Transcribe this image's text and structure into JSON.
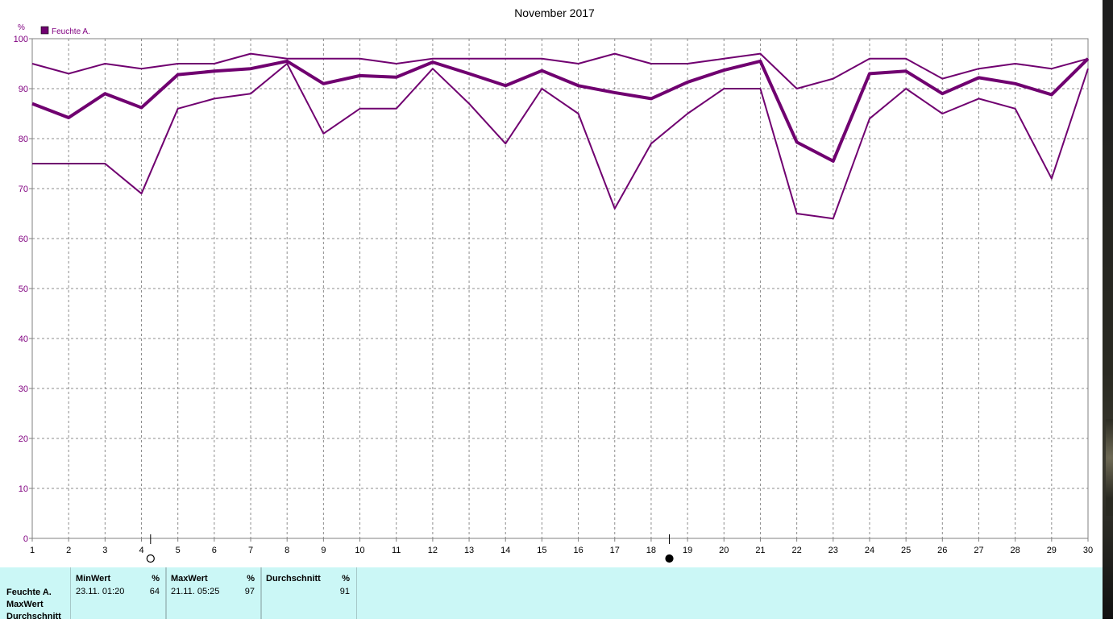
{
  "chart_data": {
    "type": "line",
    "title": "November 2017",
    "ylabel": "%",
    "xlabel": "",
    "legend": {
      "label": "Feuchte A.",
      "placement": "top-left",
      "color": "#700070"
    },
    "ylim": [
      0,
      100
    ],
    "yticks": [
      0,
      10,
      20,
      30,
      40,
      50,
      60,
      70,
      80,
      90,
      100
    ],
    "xlim": [
      1,
      30
    ],
    "x": [
      1,
      2,
      3,
      4,
      5,
      6,
      7,
      8,
      9,
      10,
      11,
      12,
      13,
      14,
      15,
      16,
      17,
      18,
      19,
      20,
      21,
      22,
      23,
      24,
      25,
      26,
      27,
      28,
      29,
      30
    ],
    "grid": true,
    "series": [
      {
        "values": [
          95,
          93,
          95,
          94,
          95,
          95,
          97,
          96,
          96,
          96,
          95,
          96,
          96,
          96,
          96,
          95,
          97,
          95,
          95,
          96,
          97,
          90,
          92,
          96,
          96,
          92,
          94,
          95,
          94,
          96
        ],
        "width": 2
      },
      {
        "values": [
          87,
          84.2,
          89,
          86.2,
          92.8,
          93.5,
          94,
          95.5,
          91,
          92.6,
          92.3,
          95.3,
          93,
          90.6,
          93.6,
          90.6,
          89.2,
          88,
          91.3,
          93.7,
          95.5,
          79.3,
          75.5,
          93,
          93.5,
          89,
          92.2,
          91,
          88.8,
          96
        ],
        "width": 4
      },
      {
        "values": [
          75,
          75,
          75,
          69,
          86,
          88,
          89,
          95,
          81,
          86,
          86,
          94,
          87,
          79,
          90,
          85,
          66,
          79,
          85,
          90,
          90,
          65,
          64,
          84,
          90,
          85,
          88,
          86,
          72,
          94
        ],
        "width": 2
      }
    ],
    "markers": [
      {
        "x": 4.25,
        "type": "open-circle"
      },
      {
        "x": 18.5,
        "type": "filled-circle"
      }
    ]
  },
  "colors": {
    "series": "#700070",
    "axis_text": "#800080",
    "grid": "#8c8c8c",
    "panel_bg": "#cbf7f6"
  },
  "stats": {
    "row_labels": [
      "Feuchte A.",
      "MaxWert",
      "Durchschnitt"
    ],
    "min": {
      "header": "MinWert",
      "unit": "%",
      "date": "23.11.  01:20",
      "value": "64"
    },
    "max": {
      "header": "MaxWert",
      "unit": "%",
      "date": "21.11.  05:25",
      "value": "97"
    },
    "avg": {
      "header": "Durchschnitt",
      "unit": "%",
      "value": "91"
    }
  }
}
